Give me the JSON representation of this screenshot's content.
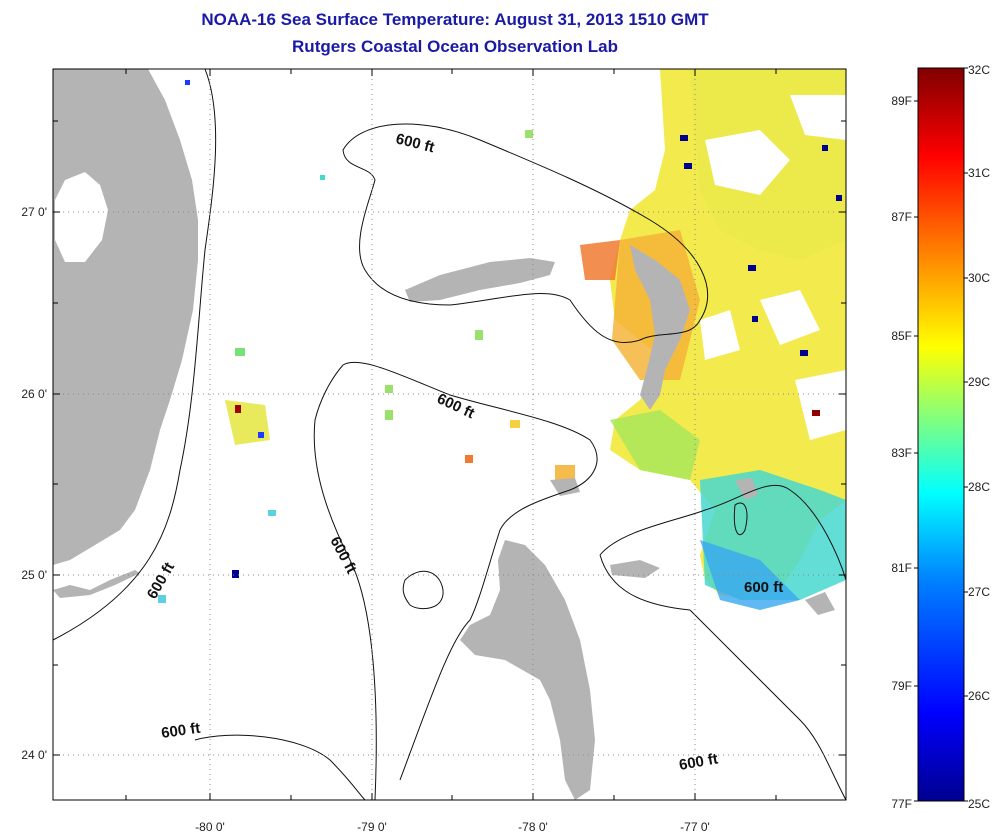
{
  "header": {
    "title": "NOAA-16 Sea Surface Temperature:  August 31, 2013 1510 GMT",
    "subtitle": "Rutgers Coastal Ocean Observation Lab"
  },
  "map": {
    "lon_labels": [
      "-80 0'",
      "-79 0'",
      "-78 0'",
      "-77 0'"
    ],
    "lat_labels": [
      "27 0'",
      "26 0'",
      "25 0'",
      "24 0'"
    ],
    "contour_label": "600 ft",
    "land_color": "#b4b4b4",
    "ocean_color": "#ffffff"
  },
  "colorbar": {
    "celsius_labels": [
      "32C",
      "31C",
      "30C",
      "29C",
      "28C",
      "27C",
      "26C",
      "25C"
    ],
    "fahrenheit_labels": [
      "89F",
      "87F",
      "85F",
      "83F",
      "81F",
      "79F",
      "77F"
    ],
    "colors": [
      "#00008f",
      "#0000ff",
      "#0080ff",
      "#00ffff",
      "#80ff80",
      "#ffff00",
      "#ff8000",
      "#ff0000",
      "#800000"
    ]
  }
}
